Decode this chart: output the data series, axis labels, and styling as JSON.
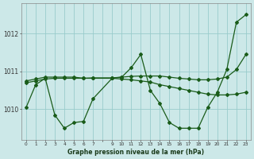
{
  "background_color": "#cce8e8",
  "grid_color": "#99cccc",
  "line_color": "#1a5c1a",
  "title": "Graphe pression niveau de la mer (hPa)",
  "yticks": [
    1010,
    1011,
    1012
  ],
  "ylim": [
    1009.2,
    1012.8
  ],
  "xlim": [
    -0.5,
    23.5
  ],
  "xtick_labels": [
    "0",
    "1",
    "2",
    "3",
    "4",
    "5",
    "6",
    "7",
    "",
    "9",
    "10",
    "11",
    "12",
    "13",
    "14",
    "15",
    "16",
    "17",
    "18",
    "19",
    "20",
    "21",
    "22",
    "23"
  ],
  "series1_x": [
    0,
    1,
    2,
    3,
    4,
    5,
    6,
    7,
    9,
    10,
    11,
    12,
    13,
    14,
    15,
    16,
    17,
    18,
    19,
    20,
    21,
    22,
    23
  ],
  "series1_y": [
    1010.75,
    1010.8,
    1010.85,
    1010.85,
    1010.85,
    1010.85,
    1010.82,
    1010.82,
    1010.82,
    1010.8,
    1010.78,
    1010.75,
    1010.72,
    1010.65,
    1010.6,
    1010.55,
    1010.5,
    1010.45,
    1010.4,
    1010.38,
    1010.38,
    1010.4,
    1010.45
  ],
  "series2_x": [
    0,
    1,
    2,
    3,
    4,
    5,
    6,
    7,
    9,
    10,
    11,
    12,
    13,
    14,
    15,
    16,
    17,
    18,
    19,
    20,
    21,
    22,
    23
  ],
  "series2_y": [
    1010.7,
    1010.75,
    1010.8,
    1010.82,
    1010.82,
    1010.82,
    1010.82,
    1010.83,
    1010.83,
    1010.85,
    1010.87,
    1010.88,
    1010.88,
    1010.88,
    1010.85,
    1010.82,
    1010.8,
    1010.78,
    1010.78,
    1010.8,
    1010.85,
    1011.05,
    1011.45
  ],
  "series3_x": [
    0,
    1,
    2,
    3,
    4,
    5,
    6,
    7,
    9,
    10,
    11,
    12,
    13,
    14,
    15,
    16,
    17,
    18,
    19,
    20,
    21,
    22,
    23
  ],
  "series3_y": [
    1010.05,
    1010.65,
    1010.82,
    1009.85,
    1009.5,
    1009.65,
    1009.68,
    1010.28,
    1010.82,
    1010.85,
    1011.1,
    1011.45,
    1010.5,
    1010.15,
    1009.65,
    1009.5,
    1009.5,
    1009.5,
    1010.05,
    1010.45,
    1011.05,
    1012.3,
    1012.5
  ]
}
